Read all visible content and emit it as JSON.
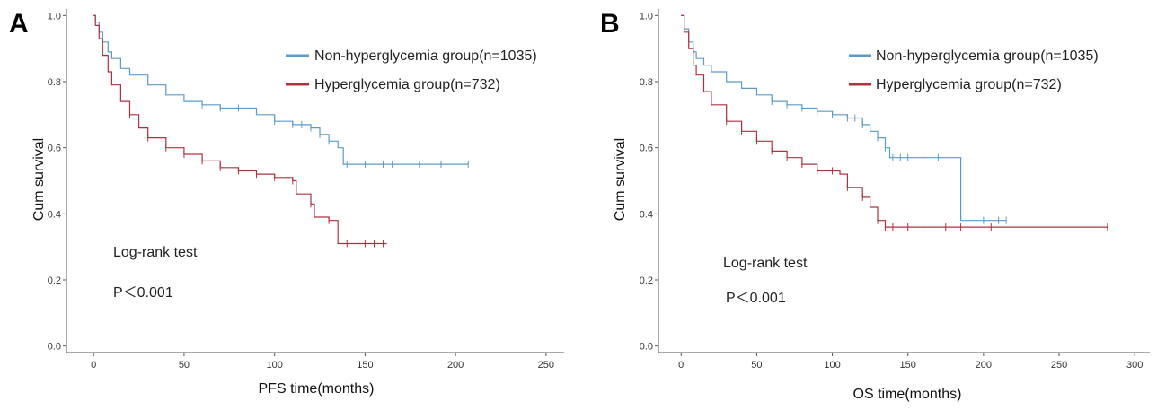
{
  "chart_data": [
    {
      "type": "line",
      "panel": "A",
      "xlabel": "PFS time(months)",
      "ylabel": "Cum survival",
      "xlim": [
        -15,
        260
      ],
      "ylim": [
        -0.02,
        1.02
      ],
      "xticks": [
        0,
        50,
        100,
        150,
        200,
        250
      ],
      "yticks": [
        0.0,
        0.2,
        0.4,
        0.6,
        0.8,
        1.0
      ],
      "tick_labels_y": [
        "0.0",
        "0.2",
        "0.4",
        "0.6",
        "0.8",
        "1.0"
      ],
      "grid": false,
      "legend_position": "top-right",
      "annotations": [
        "Log-rank test",
        "P＜0.001"
      ],
      "series": [
        {
          "name": "Non-hyperglycemia group(n=1035)",
          "color": "#5b9bc8",
          "points": [
            [
              0,
              1.0
            ],
            [
              1,
              0.98
            ],
            [
              3,
              0.95
            ],
            [
              5,
              0.92
            ],
            [
              8,
              0.89
            ],
            [
              10,
              0.87
            ],
            [
              15,
              0.84
            ],
            [
              20,
              0.82
            ],
            [
              30,
              0.79
            ],
            [
              40,
              0.76
            ],
            [
              50,
              0.74
            ],
            [
              60,
              0.73
            ],
            [
              70,
              0.72
            ],
            [
              80,
              0.72
            ],
            [
              90,
              0.7
            ],
            [
              100,
              0.68
            ],
            [
              110,
              0.67
            ],
            [
              120,
              0.66
            ],
            [
              125,
              0.64
            ],
            [
              130,
              0.62
            ],
            [
              135,
              0.6
            ],
            [
              138,
              0.55
            ],
            [
              207,
              0.55
            ]
          ],
          "censor": [
            60,
            70,
            80,
            100,
            110,
            115,
            120,
            125,
            130,
            140,
            150,
            160,
            165,
            180,
            192,
            207
          ]
        },
        {
          "name": "Hyperglycemia group(n=732)",
          "color": "#b0303f",
          "points": [
            [
              0,
              1.0
            ],
            [
              1,
              0.97
            ],
            [
              3,
              0.93
            ],
            [
              5,
              0.88
            ],
            [
              8,
              0.83
            ],
            [
              10,
              0.79
            ],
            [
              15,
              0.74
            ],
            [
              20,
              0.7
            ],
            [
              25,
              0.66
            ],
            [
              30,
              0.63
            ],
            [
              40,
              0.6
            ],
            [
              50,
              0.58
            ],
            [
              60,
              0.56
            ],
            [
              70,
              0.54
            ],
            [
              80,
              0.53
            ],
            [
              90,
              0.52
            ],
            [
              100,
              0.51
            ],
            [
              110,
              0.5
            ],
            [
              112,
              0.46
            ],
            [
              120,
              0.43
            ],
            [
              122,
              0.39
            ],
            [
              130,
              0.38
            ],
            [
              135,
              0.31
            ],
            [
              162,
              0.31
            ]
          ],
          "censor": [
            20,
            30,
            40,
            50,
            60,
            70,
            80,
            90,
            100,
            110,
            120,
            130,
            140,
            150,
            155,
            160
          ]
        }
      ]
    },
    {
      "type": "line",
      "panel": "B",
      "xlabel": "OS time(months)",
      "ylabel": "Cum survival",
      "xlim": [
        -15,
        310
      ],
      "ylim": [
        -0.02,
        1.02
      ],
      "xticks": [
        0,
        50,
        100,
        150,
        200,
        250,
        300
      ],
      "yticks": [
        0.0,
        0.2,
        0.4,
        0.6,
        0.8,
        1.0
      ],
      "tick_labels_y": [
        "0.0",
        "0.2",
        "0.4",
        "0.6",
        "0.8",
        "1.0"
      ],
      "grid": false,
      "legend_position": "top-right",
      "annotations": [
        "Log-rank test",
        "P＜0.001"
      ],
      "series": [
        {
          "name": "Non-hyperglycemia group(n=1035)",
          "color": "#5b9bc8",
          "points": [
            [
              0,
              1.0
            ],
            [
              2,
              0.96
            ],
            [
              5,
              0.92
            ],
            [
              8,
              0.89
            ],
            [
              10,
              0.87
            ],
            [
              15,
              0.85
            ],
            [
              20,
              0.83
            ],
            [
              30,
              0.8
            ],
            [
              40,
              0.78
            ],
            [
              50,
              0.76
            ],
            [
              60,
              0.74
            ],
            [
              70,
              0.73
            ],
            [
              80,
              0.72
            ],
            [
              90,
              0.71
            ],
            [
              100,
              0.7
            ],
            [
              110,
              0.69
            ],
            [
              120,
              0.67
            ],
            [
              125,
              0.65
            ],
            [
              130,
              0.63
            ],
            [
              135,
              0.6
            ],
            [
              138,
              0.57
            ],
            [
              185,
              0.57
            ],
            [
              185,
              0.38
            ],
            [
              215,
              0.38
            ]
          ],
          "censor": [
            60,
            70,
            80,
            90,
            100,
            110,
            115,
            120,
            125,
            130,
            135,
            140,
            145,
            150,
            160,
            170,
            200,
            210,
            215
          ]
        },
        {
          "name": "Hyperglycemia group(n=732)",
          "color": "#b0303f",
          "points": [
            [
              0,
              1.0
            ],
            [
              2,
              0.95
            ],
            [
              5,
              0.9
            ],
            [
              8,
              0.85
            ],
            [
              10,
              0.82
            ],
            [
              15,
              0.77
            ],
            [
              20,
              0.73
            ],
            [
              30,
              0.68
            ],
            [
              40,
              0.65
            ],
            [
              50,
              0.62
            ],
            [
              60,
              0.59
            ],
            [
              70,
              0.57
            ],
            [
              80,
              0.55
            ],
            [
              90,
              0.53
            ],
            [
              100,
              0.53
            ],
            [
              105,
              0.52
            ],
            [
              110,
              0.48
            ],
            [
              120,
              0.45
            ],
            [
              125,
              0.42
            ],
            [
              130,
              0.38
            ],
            [
              135,
              0.36
            ],
            [
              282,
              0.36
            ]
          ],
          "censor": [
            30,
            40,
            50,
            60,
            70,
            80,
            90,
            100,
            110,
            120,
            130,
            135,
            140,
            150,
            160,
            175,
            185,
            205,
            282
          ]
        }
      ]
    }
  ]
}
